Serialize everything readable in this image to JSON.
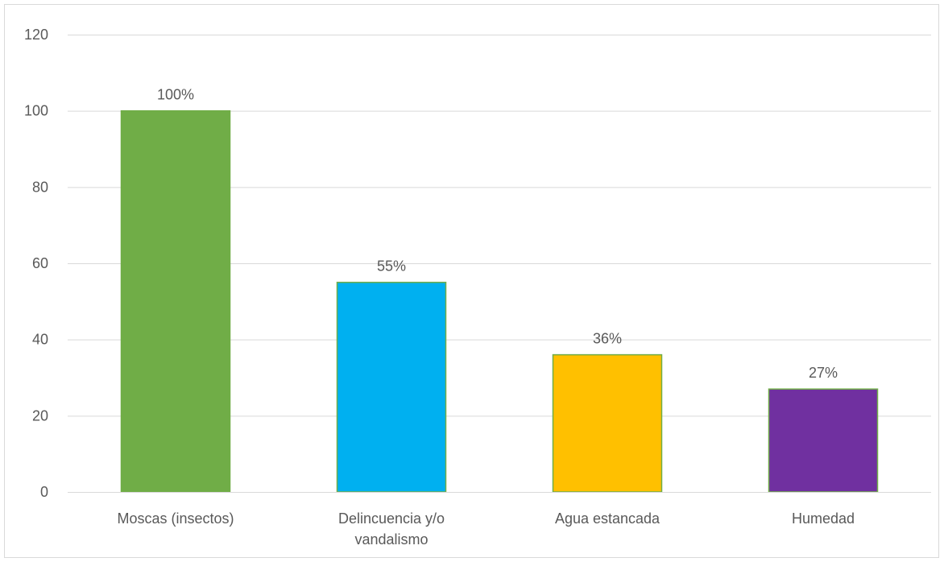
{
  "chart_data": {
    "type": "bar",
    "categories": [
      "Moscas (insectos)",
      "Delincuencia y/o vandalismo",
      "Agua estancada",
      "Humedad"
    ],
    "category_lines": [
      [
        "Moscas (insectos)"
      ],
      [
        "Delincuencia y/o",
        "vandalismo"
      ],
      [
        "Agua estancada"
      ],
      [
        "Humedad"
      ]
    ],
    "values": [
      100,
      55,
      36,
      27
    ],
    "data_labels": [
      "100%",
      "55%",
      "36%",
      "27%"
    ],
    "bar_colors": [
      "#70AD47",
      "#00B0F0",
      "#FFC000",
      "#7030A0"
    ],
    "bar_border_color": "#70AD47",
    "y_ticks": [
      "0",
      "20",
      "40",
      "60",
      "80",
      "100",
      "120"
    ],
    "ylim": [
      0,
      120
    ],
    "grid": true,
    "grid_color": "#D9D9D9",
    "legend": "none",
    "title": "",
    "xlabel": "",
    "ylabel": ""
  }
}
